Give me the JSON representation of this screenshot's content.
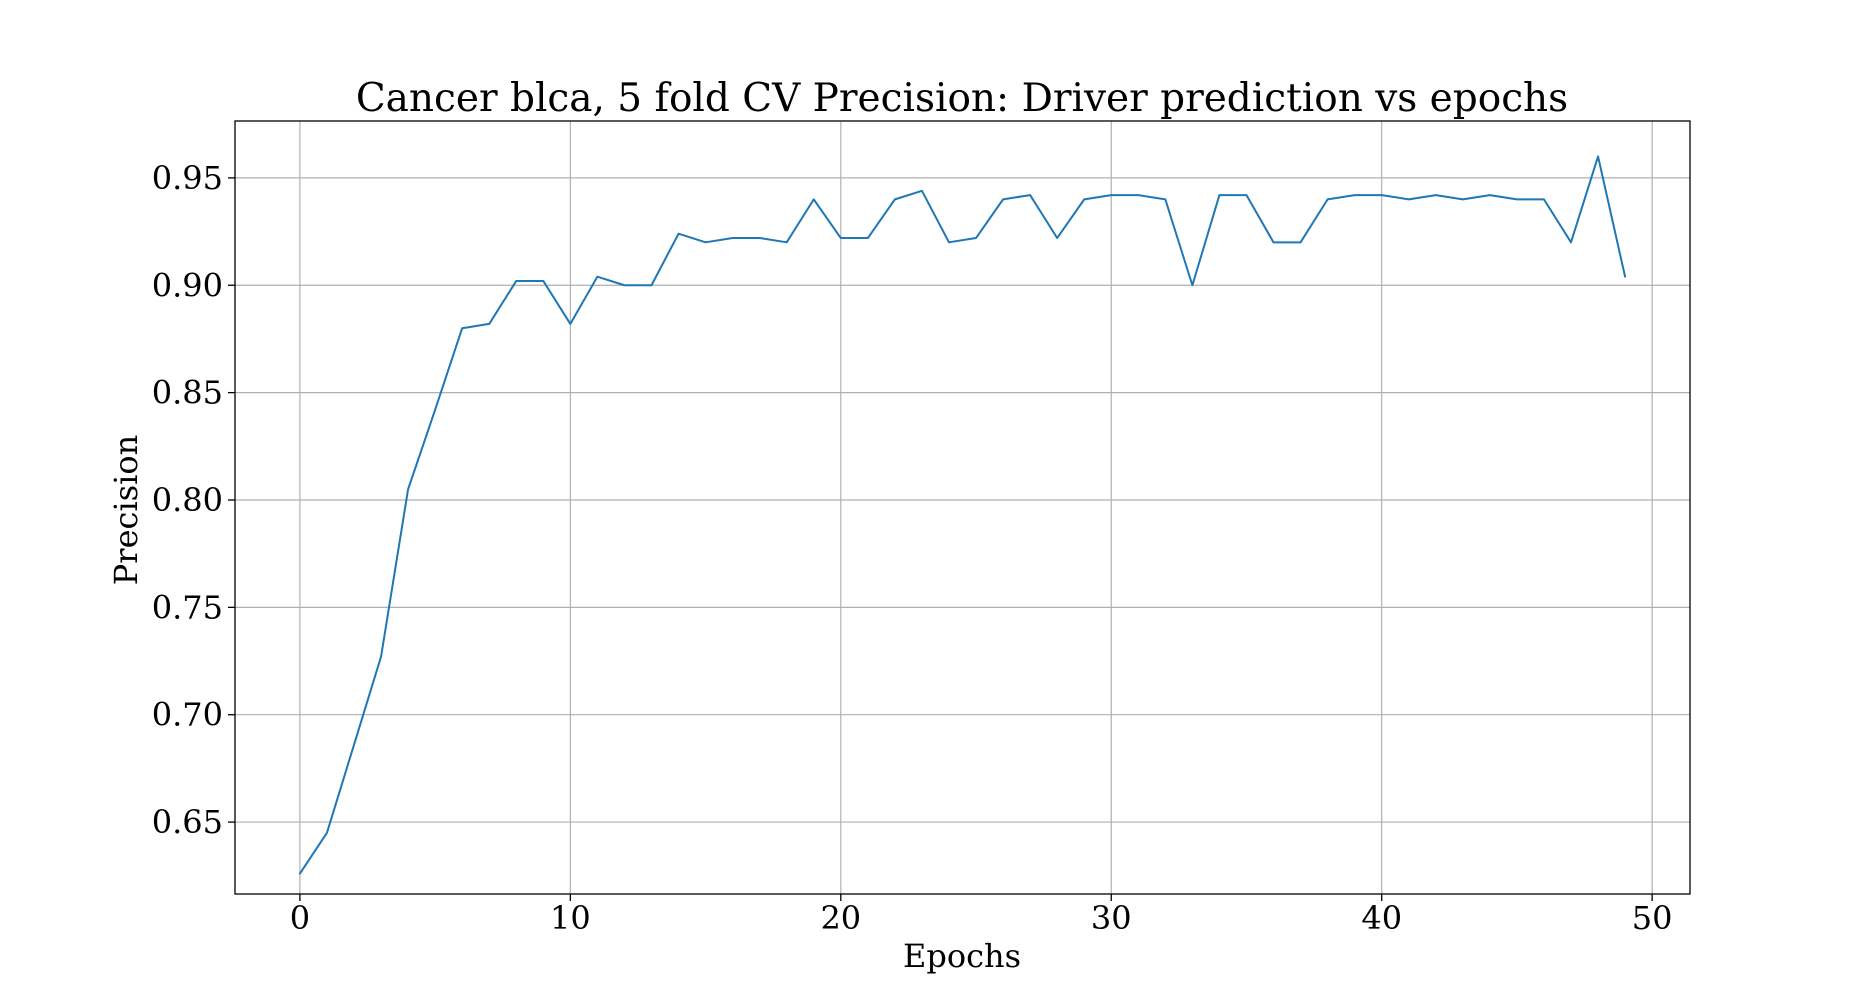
{
  "chart_data": {
    "type": "line",
    "title": "Cancer blca, 5 fold CV Precision: Driver prediction vs epochs",
    "xlabel": "Epochs",
    "ylabel": "Precision",
    "xlim": [
      -2.4,
      51.4
    ],
    "ylim": [
      0.6165,
      0.9765
    ],
    "xticks": [
      0,
      10,
      20,
      30,
      40,
      50
    ],
    "yticks": [
      0.65,
      0.7,
      0.75,
      0.8,
      0.85,
      0.9,
      0.95
    ],
    "xtick_labels": [
      "0",
      "10",
      "20",
      "30",
      "40",
      "50"
    ],
    "ytick_labels": [
      "0.65",
      "0.70",
      "0.75",
      "0.80",
      "0.85",
      "0.90",
      "0.95"
    ],
    "grid": true,
    "series": [
      {
        "color": "#1f77b4",
        "x": [
          0,
          1,
          2,
          3,
          4,
          5,
          6,
          7,
          8,
          9,
          10,
          11,
          12,
          13,
          14,
          15,
          16,
          17,
          18,
          19,
          20,
          21,
          22,
          23,
          24,
          25,
          26,
          27,
          28,
          29,
          30,
          31,
          32,
          33,
          34,
          35,
          36,
          37,
          38,
          39,
          40,
          41,
          42,
          43,
          44,
          45,
          46,
          47,
          48,
          49
        ],
        "values": [
          0.626,
          0.645,
          0.686,
          0.727,
          0.805,
          0.842,
          0.88,
          0.882,
          0.902,
          0.902,
          0.882,
          0.904,
          0.9,
          0.9,
          0.924,
          0.92,
          0.922,
          0.922,
          0.92,
          0.94,
          0.922,
          0.922,
          0.94,
          0.944,
          0.92,
          0.922,
          0.94,
          0.942,
          0.922,
          0.94,
          0.942,
          0.942,
          0.94,
          0.9,
          0.942,
          0.942,
          0.92,
          0.92,
          0.94,
          0.942,
          0.942,
          0.94,
          0.942,
          0.94,
          0.942,
          0.94,
          0.94,
          0.92,
          0.96,
          0.904
        ]
      }
    ]
  }
}
